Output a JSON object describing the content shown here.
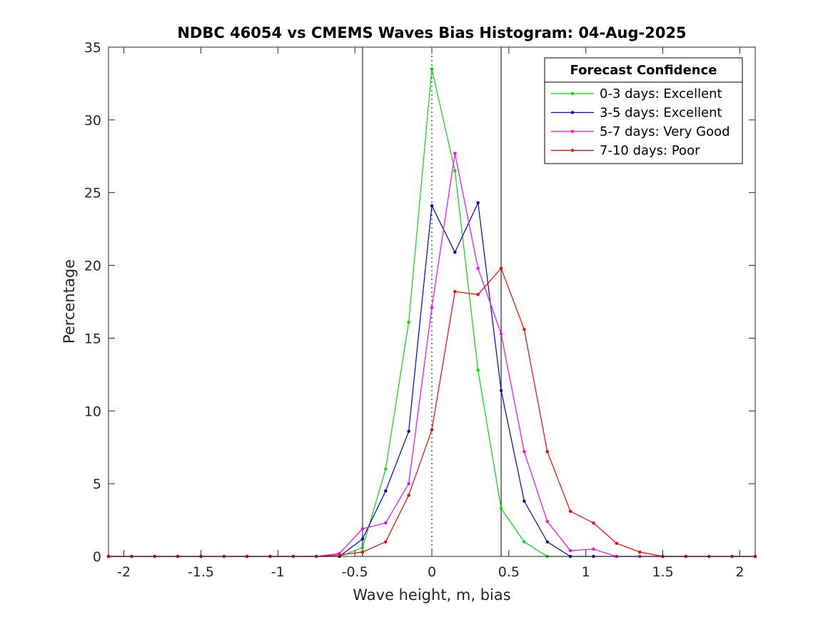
{
  "chart_data": {
    "type": "line",
    "title": "NDBC 46054 vs CMEMS Waves Bias Histogram: 04-Aug-2025",
    "xlabel": "Wave height, m, bias",
    "ylabel": "Percentage",
    "xlim": [
      -2.1,
      2.1
    ],
    "ylim": [
      0,
      35
    ],
    "xticks": [
      -2,
      -1.5,
      -1,
      -0.5,
      0,
      0.5,
      1,
      1.5,
      2
    ],
    "xtick_labels": [
      "-2",
      "-1.5",
      "-1",
      "-0.5",
      "0",
      "0.5",
      "1",
      "1.5",
      "2"
    ],
    "yticks": [
      0,
      5,
      10,
      15,
      20,
      25,
      30,
      35
    ],
    "ytick_labels": [
      "0",
      "5",
      "10",
      "15",
      "20",
      "25",
      "30",
      "35"
    ],
    "reference_lines": [
      {
        "x": -0.45,
        "style": "solid"
      },
      {
        "x": 0,
        "style": "dotted"
      },
      {
        "x": 0.45,
        "style": "solid"
      }
    ],
    "x": [
      -2.1,
      -1.95,
      -1.8,
      -1.65,
      -1.5,
      -1.35,
      -1.2,
      -1.05,
      -0.9,
      -0.75,
      -0.6,
      -0.45,
      -0.3,
      -0.15,
      0,
      0.15,
      0.3,
      0.45,
      0.6,
      0.75,
      0.9,
      1.05,
      1.2,
      1.35,
      1.5,
      1.65,
      1.8,
      1.95,
      2.1
    ],
    "series": [
      {
        "name": "0-3 days: Excellent",
        "color": "#00e000",
        "values": [
          0,
          0,
          0,
          0,
          0,
          0,
          0,
          0,
          0,
          0,
          0,
          0.6,
          6.0,
          16.1,
          33.5,
          26.5,
          12.8,
          3.3,
          1.0,
          0,
          0,
          0,
          0,
          0,
          0,
          0,
          0,
          0,
          0
        ]
      },
      {
        "name": "3-5 days: Excellent",
        "color": "#0000d0",
        "values": [
          0,
          0,
          0,
          0,
          0,
          0,
          0,
          0,
          0,
          0,
          0,
          1.2,
          4.5,
          8.6,
          24.1,
          20.9,
          24.3,
          11.4,
          3.8,
          1.0,
          0,
          0,
          0,
          0,
          0,
          0,
          0,
          0,
          0
        ]
      },
      {
        "name": "5-7 days: Very Good",
        "color": "#ff00ff",
        "values": [
          0,
          0,
          0,
          0,
          0,
          0,
          0,
          0,
          0,
          0,
          0.2,
          1.9,
          2.3,
          5.0,
          17.1,
          27.7,
          19.8,
          15.3,
          7.2,
          2.4,
          0.4,
          0.5,
          0,
          0,
          0,
          0,
          0,
          0,
          0
        ]
      },
      {
        "name": "7-10 days: Poor",
        "color": "#ff0000",
        "values": [
          0,
          0,
          0,
          0,
          0,
          0,
          0,
          0,
          0,
          0,
          0.1,
          0.3,
          1.0,
          4.2,
          8.7,
          18.2,
          18.0,
          19.8,
          15.6,
          7.2,
          3.1,
          2.3,
          0.9,
          0.3,
          0,
          0,
          0,
          0,
          0
        ]
      }
    ],
    "legend": {
      "title": "Forecast Confidence",
      "position": "top-right"
    },
    "grid": false
  }
}
